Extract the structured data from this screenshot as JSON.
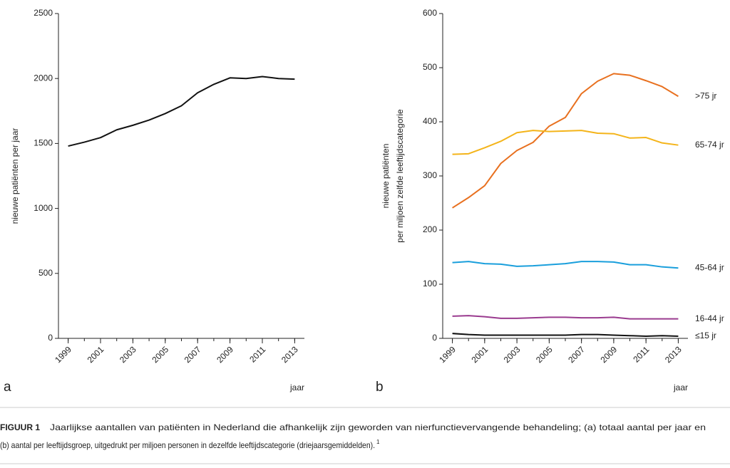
{
  "chart_data": [
    {
      "type": "line",
      "panel": "a",
      "y_label": "nieuwe patiënten per jaar",
      "x_label": "jaar",
      "x": [
        1999,
        2000,
        2001,
        2002,
        2003,
        2004,
        2005,
        2006,
        2007,
        2008,
        2009,
        2010,
        2011,
        2012,
        2013
      ],
      "values": [
        1480,
        1510,
        1545,
        1605,
        1640,
        1680,
        1730,
        1790,
        1890,
        1955,
        2005,
        2000,
        2015,
        2000,
        1995
      ],
      "color": "#111111",
      "xlim": [
        1998.4,
        2013.6
      ],
      "xticks": [
        1999,
        2001,
        2003,
        2005,
        2007,
        2009,
        2011,
        2013
      ],
      "ylim": [
        0,
        2500
      ],
      "yticks": [
        0,
        500,
        1000,
        1500,
        2000,
        2500
      ],
      "grid": false
    },
    {
      "type": "line",
      "panel": "b",
      "y_label": [
        "nieuwe patiënten",
        "per miljoen zelfde leeftijdscategorie"
      ],
      "x_label": "jaar",
      "x": [
        1999,
        2000,
        2001,
        2002,
        2003,
        2004,
        2005,
        2006,
        2007,
        2008,
        2009,
        2010,
        2011,
        2012,
        2013
      ],
      "series": [
        {
          "name": ">75 jr",
          "color": "#e8701f",
          "values": [
            241,
            260,
            282,
            323,
            347,
            362,
            392,
            408,
            452,
            475,
            489,
            486,
            476,
            465,
            447
          ]
        },
        {
          "name": "65-74 jr",
          "color": "#f4b41a",
          "values": [
            340,
            341,
            352,
            364,
            380,
            384,
            382,
            383,
            384,
            379,
            378,
            370,
            371,
            361,
            357
          ]
        },
        {
          "name": "45-64 jr",
          "color": "#1a9fdc",
          "values": [
            140,
            142,
            138,
            137,
            133,
            134,
            136,
            138,
            142,
            142,
            141,
            136,
            136,
            132,
            130
          ]
        },
        {
          "name": "16-44 jr",
          "color": "#9a3b8f",
          "values": [
            41,
            42,
            40,
            37,
            37,
            38,
            39,
            39,
            38,
            38,
            39,
            36,
            36,
            36,
            36
          ]
        },
        {
          "name": "≤15 jr",
          "color": "#111111",
          "values": [
            9,
            7,
            6,
            6,
            6,
            6,
            6,
            6,
            7,
            7,
            6,
            5,
            4,
            5,
            4
          ]
        }
      ],
      "xlim": [
        1998.4,
        2013.6
      ],
      "xticks": [
        1999,
        2001,
        2003,
        2005,
        2007,
        2009,
        2011,
        2013
      ],
      "ylim": [
        0,
        600
      ],
      "yticks": [
        0,
        100,
        200,
        300,
        400,
        500,
        600
      ],
      "grid": false
    }
  ],
  "caption": {
    "label": "FIGUUR 1",
    "lines": [
      "Jaarlijkse aantallen van patiënten in Nederland die afhankelijk zijn geworden van nierfunctievervangende behandeling; (a) totaal aantal per jaar en",
      "(b) aantal per leeftijdsgroep, uitgedrukt per miljoen personen in dezelfde leeftijdscategorie (driejaarsgemiddelden)."
    ],
    "note": "1"
  }
}
